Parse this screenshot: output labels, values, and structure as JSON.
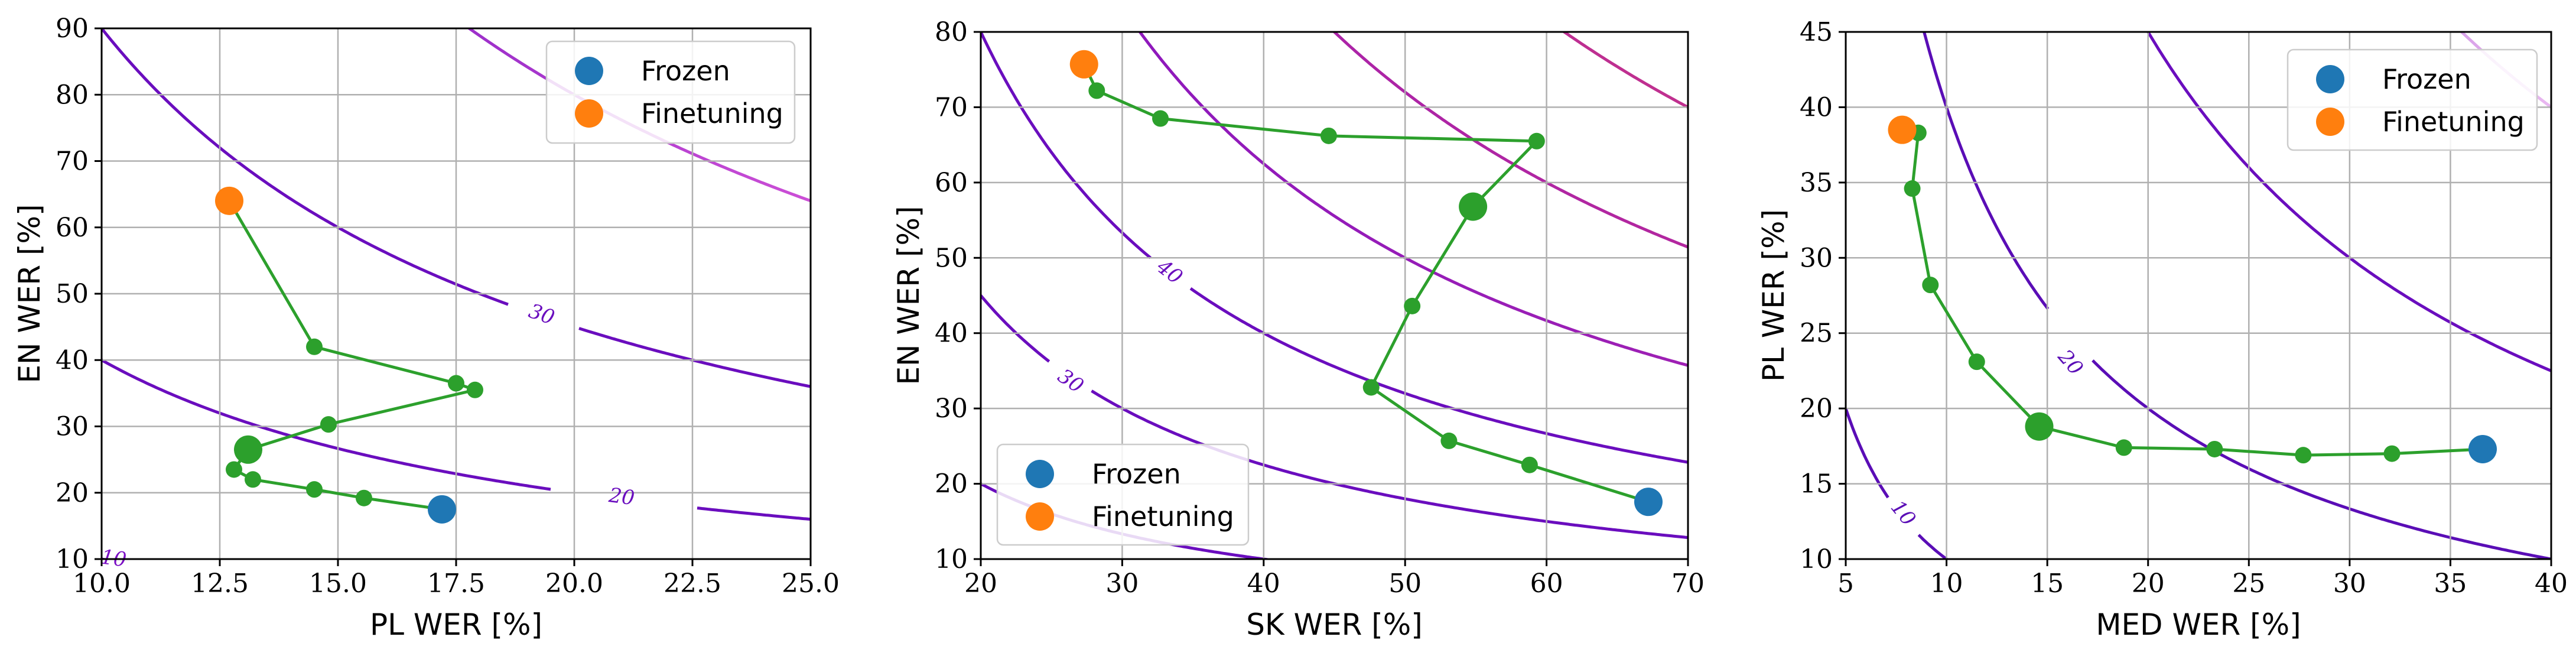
{
  "colors": {
    "frozen": "#1f77b4",
    "finetuning": "#ff7f0e",
    "trajectory": "#2ca02c",
    "grid": "#b0b0b0"
  },
  "chart_data": [
    {
      "type": "scatter",
      "xlabel": "PL WER [%]",
      "ylabel": "EN WER [%]",
      "xlim": [
        10.0,
        25.0
      ],
      "ylim": [
        10,
        90
      ],
      "xticks": [
        10.0,
        12.5,
        15.0,
        17.5,
        20.0,
        22.5,
        25.0
      ],
      "xtick_labels": [
        "10.0",
        "12.5",
        "15.0",
        "17.5",
        "20.0",
        "22.5",
        "25.0"
      ],
      "yticks": [
        10,
        20,
        30,
        40,
        50,
        60,
        70,
        80,
        90
      ],
      "ytick_labels": [
        "10",
        "20",
        "30",
        "40",
        "50",
        "60",
        "70",
        "80",
        "90"
      ],
      "legend": {
        "position": "top-right",
        "entries": [
          "Frozen",
          "Finetuning"
        ]
      },
      "frozen": {
        "x": 17.2,
        "y": 17.5
      },
      "finetuning": {
        "x": 12.7,
        "y": 64
      },
      "trajectory": {
        "x": [
          12.7,
          14.5,
          17.5,
          17.9,
          14.8,
          13.1,
          12.8,
          13.2,
          14.5,
          15.55,
          17.2
        ],
        "y": [
          64,
          42,
          36.5,
          35.5,
          30.3,
          26.5,
          23.5,
          22,
          20.5,
          19.2,
          17.5
        ],
        "big_index": [
          5
        ]
      },
      "contours": [
        {
          "level": 10,
          "label": "10",
          "label_at": [
            10.25,
            9.9
          ],
          "colors": [
            "#7a0ec4",
            "#7a0ec4"
          ]
        },
        {
          "level": 20,
          "label": "20",
          "label_at": [
            21.0,
            19.2
          ],
          "gap": [
            19.5,
            22.6
          ],
          "colors": [
            "#6a0dbe",
            "#6a0dbe"
          ]
        },
        {
          "level": 30,
          "label": "30",
          "label_at": [
            19.3,
            46.7
          ],
          "gap": [
            18.6,
            20.1
          ],
          "colors": [
            "#6a0dbe",
            "#6a0dbe"
          ]
        },
        {
          "level": 40,
          "label": "",
          "colors": [
            "#6a0dbe",
            "#cc4fd6"
          ]
        }
      ]
    },
    {
      "type": "scatter",
      "xlabel": "SK WER [%]",
      "ylabel": "EN WER [%]",
      "xlim": [
        20,
        70
      ],
      "ylim": [
        10,
        80
      ],
      "xticks": [
        20,
        30,
        40,
        50,
        60,
        70
      ],
      "xtick_labels": [
        "20",
        "30",
        "40",
        "50",
        "60",
        "70"
      ],
      "yticks": [
        10,
        20,
        30,
        40,
        50,
        60,
        70,
        80
      ],
      "ytick_labels": [
        "10",
        "20",
        "30",
        "40",
        "50",
        "60",
        "70",
        "80"
      ],
      "legend": {
        "position": "bottom-left",
        "entries": [
          "Frozen",
          "Finetuning"
        ]
      },
      "frozen": {
        "x": 67.2,
        "y": 17.6
      },
      "finetuning": {
        "x": 27.3,
        "y": 75.7
      },
      "trajectory": {
        "x": [
          27.3,
          28.2,
          32.7,
          44.6,
          59.3,
          54.8,
          50.5,
          47.6,
          53.1,
          58.8,
          67.2
        ],
        "y": [
          75.7,
          72.2,
          68.5,
          66.2,
          65.5,
          56.8,
          43.6,
          32.8,
          25.7,
          22.5,
          17.6
        ],
        "big_index": [
          5
        ]
      },
      "contours": [
        {
          "level": 20,
          "label": "",
          "colors": [
            "#6a0dbe",
            "#6a0dbe"
          ]
        },
        {
          "level": 30,
          "label": "30",
          "label_at": [
            26.3,
            33.5
          ],
          "gap": [
            24.9,
            27.7
          ],
          "colors": [
            "#6a0dbe",
            "#6a0dbe"
          ]
        },
        {
          "level": 40,
          "label": "40",
          "label_at": [
            33.3,
            48.0
          ],
          "gap": [
            32.0,
            34.7
          ],
          "colors": [
            "#6a0dbe",
            "#6a0dbe"
          ]
        },
        {
          "level": 50,
          "label": "",
          "colors": [
            "#8a16be",
            "#9e20b4"
          ]
        },
        {
          "level": 60,
          "label": "",
          "colors": [
            "#a51fb0",
            "#b3279f"
          ]
        },
        {
          "level": 70,
          "label": "",
          "colors": [
            "#b3279f",
            "#c0308f"
          ]
        },
        {
          "level": 80,
          "label": "",
          "colors": [
            "#c0308f",
            "#cd3a7a"
          ]
        }
      ]
    },
    {
      "type": "scatter",
      "xlabel": "MED WER [%]",
      "ylabel": "PL WER [%]",
      "xlim": [
        5,
        40
      ],
      "ylim": [
        10,
        45
      ],
      "xticks": [
        5,
        10,
        15,
        20,
        25,
        30,
        35,
        40
      ],
      "xtick_labels": [
        "5",
        "10",
        "15",
        "20",
        "25",
        "30",
        "35",
        "40"
      ],
      "yticks": [
        10,
        15,
        20,
        25,
        30,
        35,
        40,
        45
      ],
      "ytick_labels": [
        "10",
        "15",
        "20",
        "25",
        "30",
        "35",
        "40",
        "45"
      ],
      "legend": {
        "position": "top-right",
        "entries": [
          "Frozen",
          "Finetuning"
        ]
      },
      "frozen": {
        "x": 36.6,
        "y": 17.3
      },
      "finetuning": {
        "x": 7.8,
        "y": 38.5
      },
      "trajectory": {
        "x": [
          7.8,
          8.6,
          8.3,
          9.2,
          11.5,
          14.6,
          18.8,
          23.3,
          27.7,
          32.1,
          36.6
        ],
        "y": [
          38.5,
          38.3,
          34.6,
          28.2,
          23.1,
          18.8,
          17.4,
          17.3,
          16.9,
          17.0,
          17.3
        ],
        "big_index": [
          5
        ]
      },
      "contours": [
        {
          "level": 10,
          "label": "10",
          "label_at": [
            7.8,
            13.0
          ],
          "gap": [
            7.1,
            8.6
          ],
          "colors": [
            "#5a0db6",
            "#5a0db6"
          ]
        },
        {
          "level": 20,
          "label": "20",
          "label_at": [
            16.1,
            23.0
          ],
          "gap": [
            15.1,
            17.2
          ],
          "colors": [
            "#5a0db6",
            "#5a0db6"
          ]
        },
        {
          "level": 30,
          "label": "",
          "colors": [
            "#6a0dbe",
            "#6a0dbe"
          ]
        },
        {
          "level": 40,
          "label": "",
          "colors": [
            "#6a0dbe",
            "#e9b8f0"
          ]
        }
      ]
    }
  ]
}
